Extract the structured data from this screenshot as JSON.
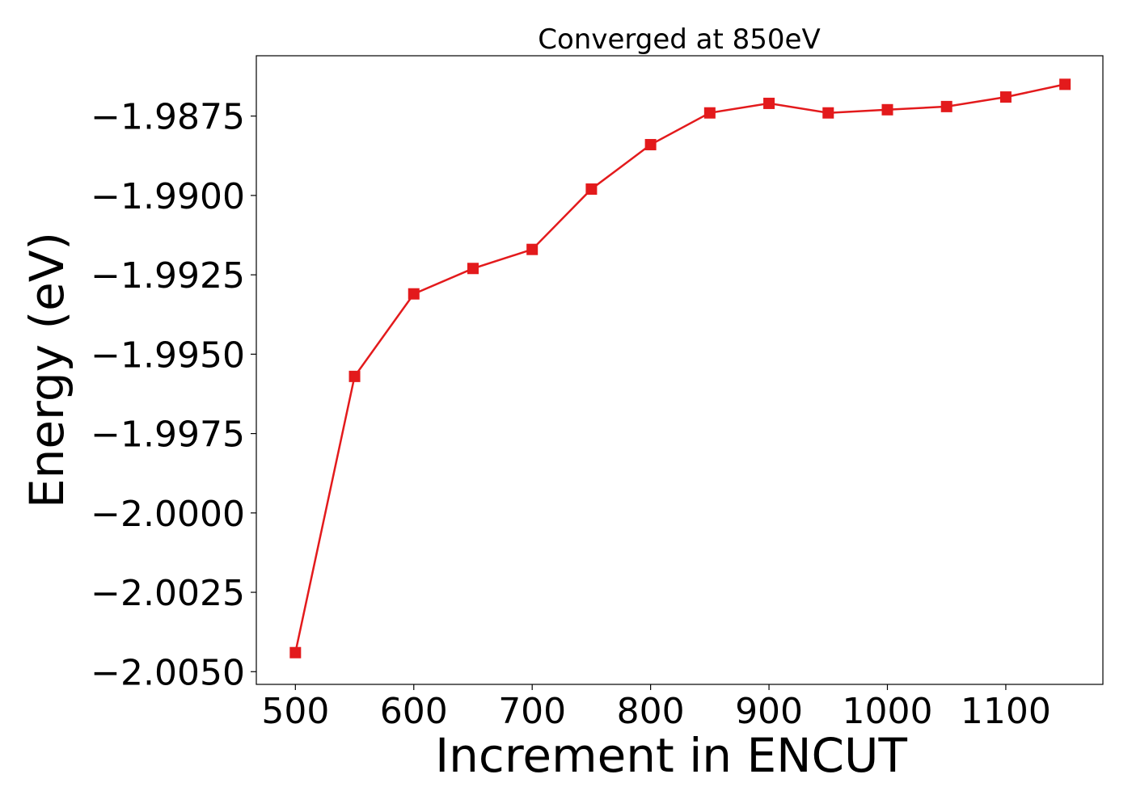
{
  "chart_data": {
    "type": "line",
    "title": "Converged at 850eV",
    "xlabel": "Increment in ENCUT",
    "ylabel": "Energy (eV)",
    "xlim": [
      467,
      1182
    ],
    "ylim": [
      -2.0054,
      -1.9856
    ],
    "xticks": [
      500,
      600,
      700,
      800,
      900,
      1000,
      1100
    ],
    "xtick_labels": [
      "500",
      "600",
      "700",
      "800",
      "900",
      "1000",
      "1100"
    ],
    "yticks": [
      -1.9875,
      -1.99,
      -1.9925,
      -1.995,
      -1.9975,
      -2.0,
      -2.0025,
      -2.005
    ],
    "ytick_labels": [
      "−1.9875",
      "−1.9900",
      "−1.9925",
      "−1.9950",
      "−1.9975",
      "−2.0000",
      "−2.0025",
      "−2.0050"
    ],
    "grid": false,
    "series": [
      {
        "color": "#e31a1c",
        "marker": "square",
        "x": [
          500,
          550,
          600,
          650,
          700,
          750,
          800,
          850,
          900,
          950,
          1000,
          1050,
          1100,
          1150
        ],
        "y": [
          -2.0044,
          -1.9957,
          -1.9931,
          -1.9923,
          -1.9917,
          -1.9898,
          -1.9884,
          -1.9874,
          -1.9871,
          -1.9874,
          -1.9873,
          -1.9872,
          -1.9869,
          -1.9865
        ]
      }
    ]
  }
}
